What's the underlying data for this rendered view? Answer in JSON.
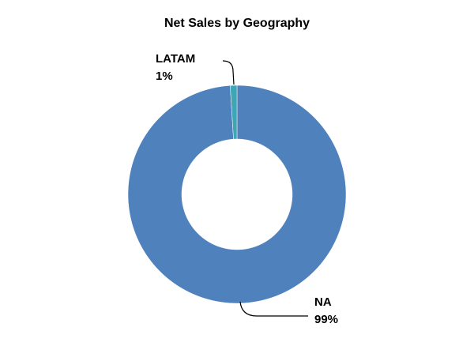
{
  "chart_data": {
    "type": "donut",
    "title": "Net Sales by Geography",
    "categories": [
      "NA",
      "LATAM"
    ],
    "values": [
      99,
      1
    ],
    "value_labels": [
      "99%",
      "1%"
    ],
    "colors": [
      "#4f81bd",
      "#3fa6b4"
    ]
  }
}
